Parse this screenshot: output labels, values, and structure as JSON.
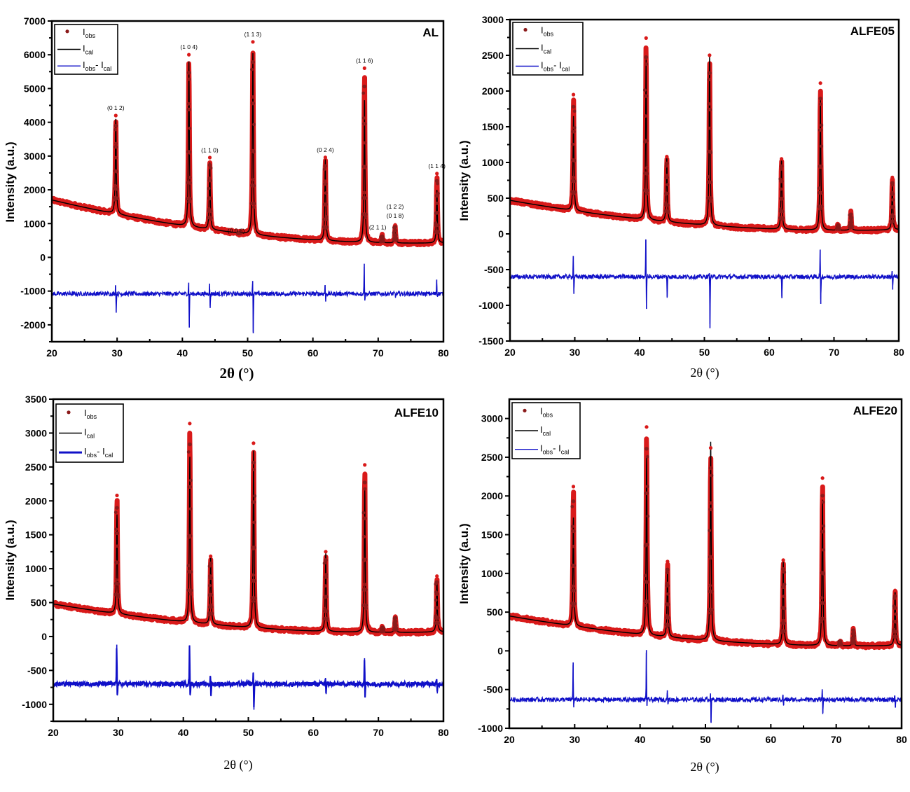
{
  "colors": {
    "obs": "#d91a1a",
    "obs_dark": "#8b1a1a",
    "cal": "#000000",
    "diff": "#1010c8"
  },
  "chart_data": [
    {
      "type": "line",
      "title": "AL",
      "xlabel": "2θ (°)",
      "ylabel": "Intensity (a.u.)",
      "xlim": [
        20,
        80
      ],
      "ylim": [
        -2500,
        7000
      ],
      "xticks": [
        "20",
        "30",
        "40",
        "50",
        "60",
        "70",
        "80"
      ],
      "yticks": [
        "-2000",
        "-1000",
        "0",
        "1000",
        "2000",
        "3000",
        "4000",
        "5000",
        "6000",
        "7000"
      ],
      "legend": {
        "position": "top-left",
        "entries": [
          {
            "main": "I",
            "sub": "obs"
          },
          {
            "main": "I",
            "sub": "cal"
          },
          {
            "main": "I",
            "sub": "obs",
            "main2": "- I",
            "sub2": "cal"
          }
        ]
      },
      "background": {
        "start": 1700,
        "mid": 800,
        "end": 430
      },
      "diff_offset": -1080,
      "peaks": [
        {
          "x": 29.8,
          "cal": 4100,
          "obs": 4200,
          "hkl": "(0 1 2)",
          "dpos": 250,
          "dneg": -560
        },
        {
          "x": 41.0,
          "cal": 5800,
          "obs": 6000,
          "hkl": "(1 0 4)",
          "dpos": 330,
          "dneg": -1000
        },
        {
          "x": 44.2,
          "cal": 2800,
          "obs": 2950,
          "hkl": "(1 1 0)",
          "dpos": 300,
          "dneg": -420
        },
        {
          "x": 48.7,
          "cal": 700,
          "obs": 700,
          "hkl": "(0 0 6)",
          "dpos": 0,
          "dneg": 0
        },
        {
          "x": 50.8,
          "cal": 6050,
          "obs": 6380,
          "hkl": "(1 1 3)",
          "dpos": 380,
          "dneg": -1170
        },
        {
          "x": 61.9,
          "cal": 2900,
          "obs": 2960,
          "hkl": "(0 2 4)",
          "dpos": 260,
          "dneg": -230
        },
        {
          "x": 67.9,
          "cal": 4650,
          "obs": 5600,
          "hkl": "(1 1 6)",
          "dpos": 890,
          "dneg": -200
        },
        {
          "x": 70.6,
          "cal": 620,
          "obs": 640,
          "hkl": "(2 1 1)",
          "dpos": 0,
          "dneg": 0
        },
        {
          "x": 72.6,
          "cal": 900,
          "obs": 960,
          "hkl": "(0 1 8)",
          "hkl2": "(1 2 2)",
          "dpos": 0,
          "dneg": -100
        },
        {
          "x": 79.0,
          "cal": 2000,
          "obs": 2480,
          "hkl": "(1 1 4)",
          "dpos": 420,
          "dneg": -50
        }
      ]
    },
    {
      "type": "line",
      "title": "ALFE05",
      "xlabel": "2θ (°)",
      "ylabel": "Intensity (a.u.)",
      "xlim": [
        20,
        80
      ],
      "ylim": [
        -1500,
        3000
      ],
      "xticks": [
        "20",
        "30",
        "40",
        "50",
        "60",
        "70",
        "80"
      ],
      "yticks": [
        "-1500",
        "-1000",
        "-500",
        "0",
        "500",
        "1000",
        "1500",
        "2000",
        "2500",
        "3000"
      ],
      "legend": {
        "position": "top-left",
        "entries": [
          {
            "main": "I",
            "sub": "obs"
          },
          {
            "main": "I",
            "sub": "cal"
          },
          {
            "main": "I",
            "sub": "obs",
            "main2": "- I",
            "sub2": "cal"
          }
        ]
      },
      "background": {
        "start": 470,
        "mid": 160,
        "end": 60
      },
      "diff_offset": -600,
      "peaks": [
        {
          "x": 29.8,
          "cal": 1650,
          "obs": 1950,
          "dpos": 290,
          "dneg": -240
        },
        {
          "x": 41.0,
          "cal": 2440,
          "obs": 2740,
          "dpos": 520,
          "dneg": -450
        },
        {
          "x": 44.2,
          "cal": 1100,
          "obs": 1080,
          "dpos": 0,
          "dneg": -280
        },
        {
          "x": 50.8,
          "cal": 2500,
          "obs": 2500,
          "dpos": 50,
          "dneg": -720
        },
        {
          "x": 61.9,
          "cal": 1060,
          "obs": 1050,
          "dpos": 0,
          "dneg": -300
        },
        {
          "x": 67.9,
          "cal": 1900,
          "obs": 2110,
          "dpos": 380,
          "dneg": -380
        },
        {
          "x": 70.6,
          "cal": 130,
          "obs": 130,
          "dpos": 0,
          "dneg": 0
        },
        {
          "x": 72.6,
          "cal": 290,
          "obs": 300,
          "dpos": 0,
          "dneg": 0
        },
        {
          "x": 79.0,
          "cal": 700,
          "obs": 790,
          "dpos": 80,
          "dneg": -180
        }
      ]
    },
    {
      "type": "line",
      "title": "ALFE10",
      "xlabel": "2θ (°)",
      "ylabel": "Intensity (a.u.)",
      "xlim": [
        20,
        80
      ],
      "ylim": [
        -1250,
        3500
      ],
      "xticks": [
        "20",
        "30",
        "40",
        "50",
        "60",
        "70",
        "80"
      ],
      "yticks": [
        "-1000",
        "-500",
        "0",
        "500",
        "1000",
        "1500",
        "2000",
        "2500",
        "3000",
        "3500"
      ],
      "legend": {
        "position": "top-left",
        "entries": [
          {
            "main": "I",
            "sub": "obs"
          },
          {
            "main": "I",
            "sub": "cal"
          },
          {
            "main": "I",
            "sub": "obs",
            "main2": "- I",
            "sub2": "cal"
          }
        ]
      },
      "background": {
        "start": 480,
        "mid": 170,
        "end": 70
      },
      "diff_offset": -700,
      "peaks": [
        {
          "x": 29.8,
          "cal": 1800,
          "obs": 2080,
          "dpos": 580,
          "dneg": -170
        },
        {
          "x": 41.0,
          "cal": 2650,
          "obs": 3140,
          "dpos": 570,
          "dneg": -170
        },
        {
          "x": 44.2,
          "cal": 1200,
          "obs": 1180,
          "dpos": 100,
          "dneg": -180
        },
        {
          "x": 50.8,
          "cal": 2740,
          "obs": 2850,
          "dpos": 170,
          "dneg": -380
        },
        {
          "x": 61.9,
          "cal": 1230,
          "obs": 1250,
          "dpos": 90,
          "dneg": -150
        },
        {
          "x": 67.9,
          "cal": 2160,
          "obs": 2530,
          "dpos": 380,
          "dneg": -200
        },
        {
          "x": 70.6,
          "cal": 140,
          "obs": 140,
          "dpos": 0,
          "dneg": 0
        },
        {
          "x": 72.6,
          "cal": 290,
          "obs": 300,
          "dpos": 0,
          "dneg": 0
        },
        {
          "x": 79.0,
          "cal": 820,
          "obs": 890,
          "dpos": 60,
          "dneg": -140
        }
      ]
    },
    {
      "type": "line",
      "title": "ALFE20",
      "xlabel": "2θ (°)",
      "ylabel": "Intensity (a.u.)",
      "xlim": [
        20,
        80
      ],
      "ylim": [
        -1000,
        3250
      ],
      "xticks": [
        "20",
        "30",
        "40",
        "50",
        "60",
        "70",
        "80"
      ],
      "yticks": [
        "-1000",
        "-500",
        "0",
        "500",
        "1000",
        "1500",
        "2000",
        "2500",
        "3000"
      ],
      "legend": {
        "position": "top-left",
        "entries": [
          {
            "main": "I",
            "sub": "obs"
          },
          {
            "main": "I",
            "sub": "cal"
          },
          {
            "main": "I",
            "sub": "obs",
            "main2": "- I",
            "sub2": "cal"
          }
        ]
      },
      "background": {
        "start": 450,
        "mid": 170,
        "end": 70
      },
      "diff_offset": -630,
      "peaks": [
        {
          "x": 29.8,
          "cal": 1720,
          "obs": 2120,
          "dpos": 480,
          "dneg": -100
        },
        {
          "x": 41.0,
          "cal": 2500,
          "obs": 2890,
          "dpos": 640,
          "dneg": -80
        },
        {
          "x": 44.2,
          "cal": 1050,
          "obs": 1150,
          "dpos": 120,
          "dneg": -60
        },
        {
          "x": 50.8,
          "cal": 2700,
          "obs": 2620,
          "dpos": 80,
          "dneg": -300
        },
        {
          "x": 61.9,
          "cal": 1150,
          "obs": 1170,
          "dpos": 60,
          "dneg": -70
        },
        {
          "x": 67.9,
          "cal": 1950,
          "obs": 2230,
          "dpos": 120,
          "dneg": -170
        },
        {
          "x": 70.6,
          "cal": 130,
          "obs": 130,
          "dpos": 0,
          "dneg": 0
        },
        {
          "x": 72.6,
          "cal": 280,
          "obs": 290,
          "dpos": 0,
          "dneg": 0
        },
        {
          "x": 79.0,
          "cal": 780,
          "obs": 780,
          "dpos": 50,
          "dneg": -100
        }
      ]
    }
  ]
}
